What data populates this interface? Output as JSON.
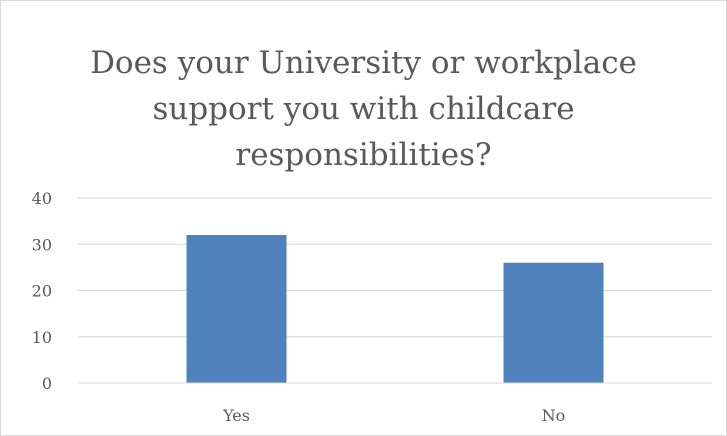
{
  "chart_data": {
    "type": "bar",
    "title": "Does your University or workplace support you with childcare responsibilities?",
    "categories": [
      "Yes",
      "No"
    ],
    "values": [
      32,
      26
    ],
    "ylim": [
      0,
      40
    ],
    "yticks": [
      0,
      10,
      20,
      30,
      40
    ],
    "grid": true,
    "legend": "none",
    "colors": {
      "bar": "#4f81bd",
      "grid": "#d9d9d9",
      "text": "#595959"
    }
  }
}
